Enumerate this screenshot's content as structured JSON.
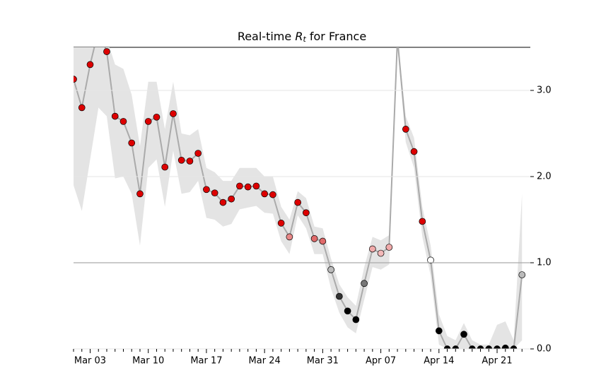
{
  "chart_data": {
    "type": "line",
    "title_prefix": "Real-time",
    "title_symbol": "R",
    "title_subscript": "t",
    "title_suffix": "for France",
    "categories": [
      null,
      null,
      "Mar 03",
      null,
      null,
      null,
      null,
      null,
      null,
      "Mar 10",
      null,
      null,
      null,
      null,
      null,
      null,
      "Mar 17",
      null,
      null,
      null,
      null,
      null,
      null,
      "Mar 24",
      null,
      null,
      null,
      null,
      null,
      null,
      "Mar 31",
      null,
      null,
      null,
      null,
      null,
      null,
      "Apr 07",
      null,
      null,
      null,
      null,
      null,
      null,
      "Apr 14",
      null,
      null,
      null,
      null,
      null,
      null,
      "Apr 21",
      null,
      null,
      null
    ],
    "values": [
      3.13,
      2.8,
      3.3,
      3.7,
      3.45,
      2.7,
      2.64,
      2.39,
      1.8,
      2.64,
      2.69,
      2.11,
      2.73,
      2.19,
      2.18,
      2.27,
      1.85,
      1.81,
      1.7,
      1.74,
      1.89,
      1.88,
      1.89,
      1.8,
      1.79,
      1.46,
      1.3,
      1.7,
      1.58,
      1.28,
      1.25,
      0.92,
      0.61,
      0.44,
      0.34,
      0.76,
      1.16,
      1.11,
      1.18,
      3.6,
      2.55,
      2.29,
      1.48,
      1.03,
      0.21,
      0,
      0,
      0.17,
      0,
      0,
      0,
      0,
      0.01,
      0,
      0.86
    ],
    "lower": [
      1.9,
      1.6,
      2.2,
      2.8,
      2.7,
      1.98,
      2.0,
      1.8,
      1.2,
      2.1,
      2.2,
      1.65,
      2.3,
      1.8,
      1.82,
      1.95,
      1.52,
      1.5,
      1.42,
      1.45,
      1.62,
      1.64,
      1.66,
      1.58,
      1.57,
      1.25,
      1.1,
      1.55,
      1.4,
      1.1,
      1.1,
      0.7,
      0.42,
      0.25,
      0.18,
      0.57,
      0.95,
      0.92,
      0.98,
      3.5,
      2.4,
      2.1,
      1.3,
      0.85,
      0.05,
      0,
      0,
      0,
      0,
      0,
      0,
      0,
      0,
      0,
      0.1
    ],
    "upper": [
      3.6,
      3.6,
      3.6,
      3.6,
      3.6,
      3.3,
      3.25,
      2.95,
      2.35,
      3.1,
      3.1,
      2.55,
      3.1,
      2.5,
      2.48,
      2.55,
      2.1,
      2.05,
      1.95,
      1.95,
      2.1,
      2.1,
      2.1,
      2.0,
      2.0,
      1.65,
      1.5,
      1.83,
      1.75,
      1.42,
      1.4,
      1.05,
      0.75,
      0.6,
      0.5,
      0.95,
      1.3,
      1.26,
      1.32,
      3.6,
      2.7,
      2.45,
      1.65,
      1.2,
      0.4,
      0.15,
      0.1,
      0.3,
      0.1,
      0.05,
      0.05,
      0.28,
      0.32,
      0.1,
      1.8
    ],
    "point_colors": [
      "#dd0000",
      "#dd0000",
      "#dd0000",
      "#dd0000",
      "#dd0000",
      "#dd0000",
      "#dd0000",
      "#dd0000",
      "#dd0000",
      "#dd0000",
      "#dd0000",
      "#dd0000",
      "#dd0000",
      "#dd0000",
      "#dd0000",
      "#dd0000",
      "#dd0000",
      "#dd0000",
      "#dd0000",
      "#dd0000",
      "#dd0000",
      "#dd0000",
      "#dd0000",
      "#dd0000",
      "#dd0000",
      "#dd0000",
      "#e88888",
      "#dd0000",
      "#dd0000",
      "#e06a6a",
      "#e06a6a",
      "#bbbbbb",
      "#333333",
      "#000000",
      "#000000",
      "#777777",
      "#f0aaaa",
      "#f2b8b8",
      "#f0aaaa",
      "#dd0000",
      "#dd0000",
      "#dd0000",
      "#dd0000",
      "#ffffff",
      "#000000",
      "#000000",
      "#000000",
      "#000000",
      "#000000",
      "#000000",
      "#000000",
      "#000000",
      "#000000",
      "#000000",
      "#bbbbbb"
    ],
    "line_color": "#aaaaaa",
    "band_color": "#e4e4e4",
    "ylim": [
      0,
      3.5
    ],
    "yticks": [
      {
        "value": 0,
        "label": "0.0"
      },
      {
        "value": 1,
        "label": "1.0"
      },
      {
        "value": 2,
        "label": "2.0"
      },
      {
        "value": 3,
        "label": "3.0"
      }
    ],
    "reference_line": 1,
    "grid": true
  }
}
